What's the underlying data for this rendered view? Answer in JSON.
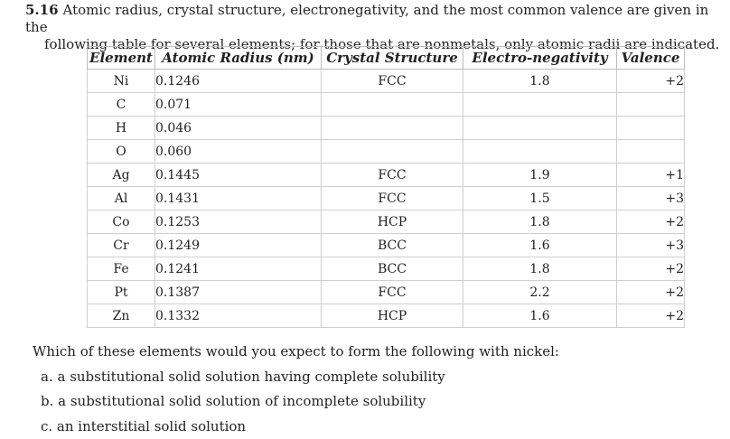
{
  "problem": {
    "number": "5.16",
    "line1": "Atomic radius, crystal structure, electronegativity, and the most common valence are given in the",
    "line2": "following table for several elements; for those that are nonmetals, only atomic radii are indicated."
  },
  "table": {
    "headers": [
      "Element",
      "Atomic Radius (nm)",
      "Crystal Structure",
      "Electro-negativity",
      "Valence"
    ],
    "rows": [
      {
        "element": "Ni",
        "radius": "0.1246",
        "structure": "FCC",
        "electronegativity": "1.8",
        "valence": "+2"
      },
      {
        "element": "C",
        "radius": "0.071",
        "structure": "",
        "electronegativity": "",
        "valence": ""
      },
      {
        "element": "H",
        "radius": "0.046",
        "structure": "",
        "electronegativity": "",
        "valence": ""
      },
      {
        "element": "O",
        "radius": "0.060",
        "structure": "",
        "electronegativity": "",
        "valence": ""
      },
      {
        "element": "Ag",
        "radius": "0.1445",
        "structure": "FCC",
        "electronegativity": "1.9",
        "valence": "+1"
      },
      {
        "element": "Al",
        "radius": "0.1431",
        "structure": "FCC",
        "electronegativity": "1.5",
        "valence": "+3"
      },
      {
        "element": "Co",
        "radius": "0.1253",
        "structure": "HCP",
        "electronegativity": "1.8",
        "valence": "+2"
      },
      {
        "element": "Cr",
        "radius": "0.1249",
        "structure": "BCC",
        "electronegativity": "1.6",
        "valence": "+3"
      },
      {
        "element": "Fe",
        "radius": "0.1241",
        "structure": "BCC",
        "electronegativity": "1.8",
        "valence": "+2"
      },
      {
        "element": "Pt",
        "radius": "0.1387",
        "structure": "FCC",
        "electronegativity": "2.2",
        "valence": "+2"
      },
      {
        "element": "Zn",
        "radius": "0.1332",
        "structure": "HCP",
        "electronegativity": "1.6",
        "valence": "+2"
      }
    ]
  },
  "question": {
    "prompt": "Which of these elements would you expect to form the following with nickel:",
    "options": [
      "a. a substitutional solid solution having complete solubility",
      "b. a substitutional solid solution of incomplete solubility",
      "c. an interstitial solid solution"
    ]
  }
}
